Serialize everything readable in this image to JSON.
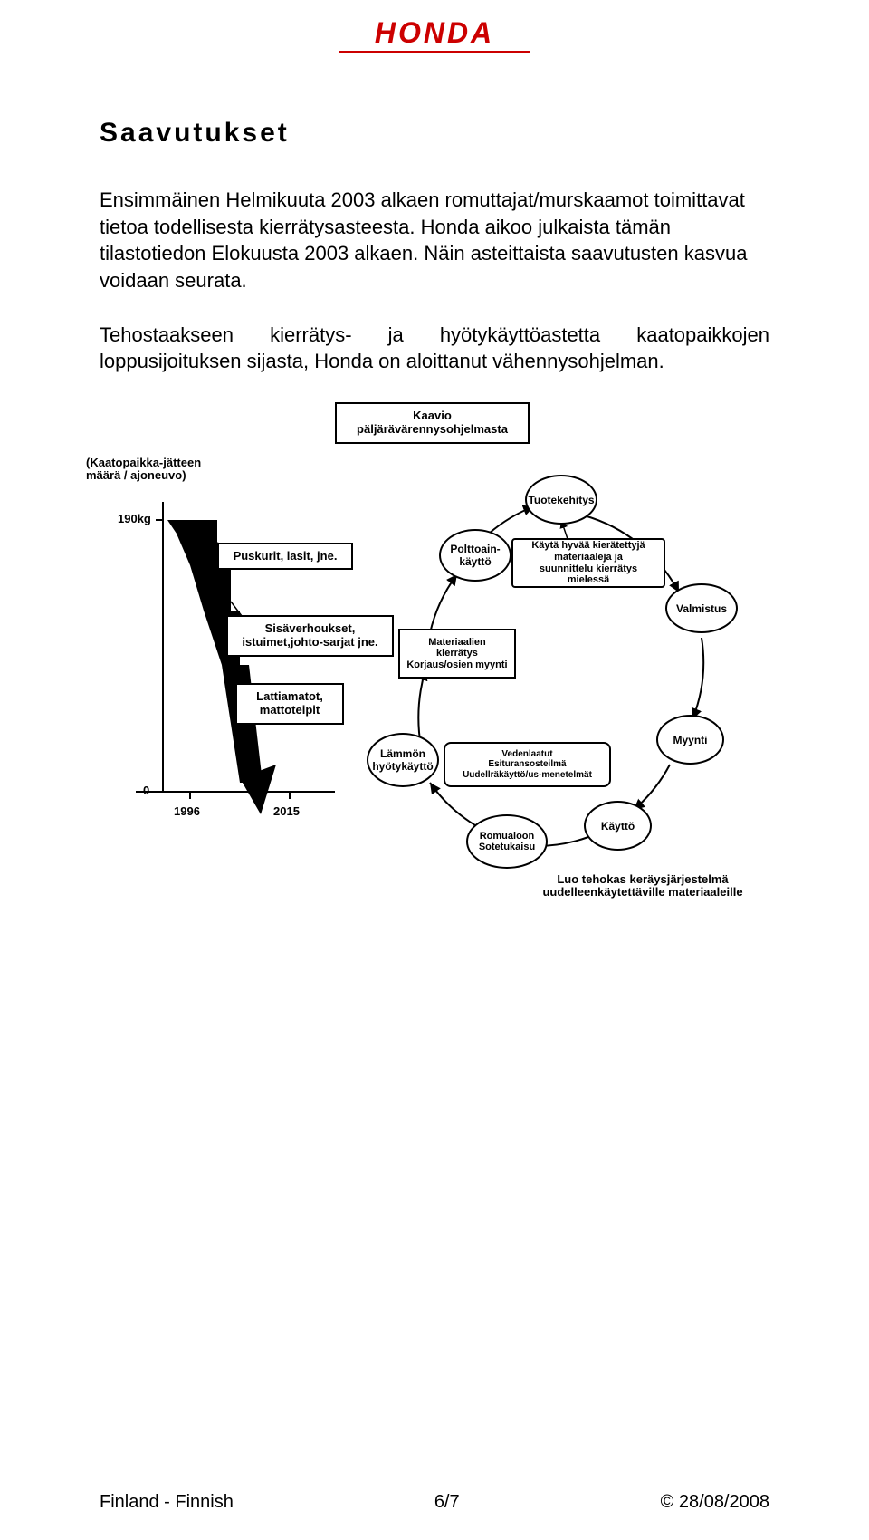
{
  "header": {
    "logo_text": "HONDA",
    "logo_color": "#cc0000"
  },
  "title": "Saavutukset",
  "paragraphs": [
    "Ensimmäinen Helmikuuta 2003 alkaen romuttajat/murskaamot toimittavat tietoa todellisesta kierrätysasteesta. Honda aikoo julkaista tämän tilastotiedon Elokuusta 2003 alkaen. Näin asteittaista saavutusten kasvua voidaan seurata.",
    "Tehostaakseen kierrätys- ja hyötykäyttöastetta kaatopaikkojen loppusijoituksen sijasta, Honda on aloittanut vähennysohjelman."
  ],
  "diagram": {
    "title_box": "Kaavio\npäljärävärennysohjelmasta",
    "chart": {
      "y_label": "(Kaatopaikka-jätteen\nmäärä / ajoneuvo)",
      "y_max": "190kg",
      "y_min": "0",
      "x_start": "1996",
      "x_end": "2015",
      "step_boxes": [
        "Puskurit, lasit, jne.",
        "Sisäverhoukset,\nistuimet,johto-sarjat jne.",
        "Lattiamatot,\nmattoteipit"
      ]
    },
    "cycle": {
      "nodes": [
        {
          "id": "tuotekehitys",
          "label": "Tuotekehitys"
        },
        {
          "id": "valmistus",
          "label": "Valmistus"
        },
        {
          "id": "myynti",
          "label": "Myynti"
        },
        {
          "id": "kaytto",
          "label": "Käyttö"
        },
        {
          "id": "romualoon",
          "label": "Romualoon\nSotetukaisu"
        },
        {
          "id": "lammon",
          "label": "Lämmön\nhyötykäyttö"
        },
        {
          "id": "polttoain",
          "label": "Polttoain-\nkäyttö"
        }
      ],
      "inner_boxes": [
        {
          "id": "kayta",
          "label": "Käytä hyvää kierätettyjä\nmateriaaleja ja\nsuunnittelu kierrätys mielessä"
        },
        {
          "id": "materiaalien",
          "label": "Materiaalien\nkierrätys\nKorjaus/osien myynti"
        },
        {
          "id": "vedenlaatut",
          "label": "Vedenlaatut\nEsituransosteilmä\nUudellräkäyttö/us-menetelmät"
        }
      ],
      "footer_label": "Luo tehokas keräysjärjestelmä\nuudelleenkäytettäville materiaaleille"
    }
  },
  "footer": {
    "left": "Finland - Finnish",
    "center": "6/7",
    "right": "© 28/08/2008"
  }
}
